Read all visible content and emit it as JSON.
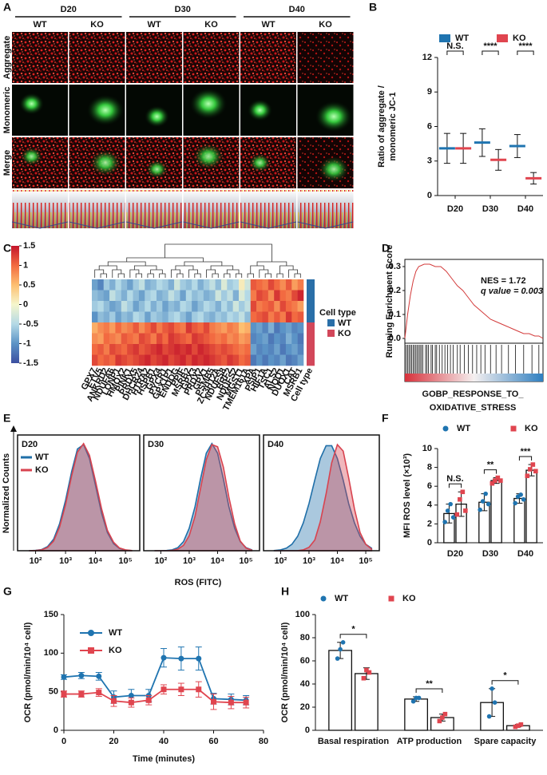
{
  "micrograph": {
    "panel": "A",
    "days": [
      "D20",
      "D30",
      "D40"
    ],
    "groups": [
      "WT",
      "KO"
    ],
    "channels": [
      "Aggregate",
      "Monomeric",
      "Merge"
    ]
  },
  "chart_data": [
    {
      "panel": "B",
      "type": "dot",
      "ylabel": [
        "Ratio of aggregate /",
        "monomeric JC-1"
      ],
      "categories": [
        "D20",
        "D30",
        "D40"
      ],
      "series": [
        {
          "name": "WT",
          "color": "#1f74b0",
          "values": [
            4.1,
            4.6,
            4.3
          ],
          "errors": [
            1.3,
            1.2,
            1.0
          ]
        },
        {
          "name": "KO",
          "color": "#e0454f",
          "values": [
            4.1,
            3.1,
            1.5
          ],
          "errors": [
            1.3,
            0.9,
            0.5
          ]
        }
      ],
      "sig": [
        "N.S.",
        "****",
        "****"
      ],
      "ylim": [
        0,
        12
      ],
      "yticks": [
        0,
        3,
        6,
        9,
        12
      ]
    },
    {
      "panel": "C",
      "type": "heatmap",
      "genes": [
        "GPX7",
        "ETV5",
        "ANKRD2",
        "NDUFA6",
        "LONP1",
        "HMOX2",
        "PINK1",
        "PRDX5",
        "DHCR24",
        "HTRA2",
        "HSPB1",
        "GPX4",
        "PYCR1",
        "GPX1P1",
        "ENDOG",
        "PPIF",
        "MSRB2",
        "GPX3",
        "PRDX2",
        "GPX1",
        "PSMB5",
        "ZC3H12A",
        "NDUFS8",
        "BRF2",
        "NDUFS2",
        "MGST1",
        "TMEM161A",
        "XPA",
        "PSIP1",
        "HIF1A",
        "TSC1",
        "ALS2",
        "NQO1",
        "DUOX1",
        "CAT",
        "MSRB1"
      ],
      "matrix": [
        [
          -0.9,
          -1.1,
          -0.6,
          -0.8,
          -0.5,
          -0.7,
          -0.9,
          -0.6,
          -0.4,
          -0.8,
          -0.7,
          -0.5,
          -0.6,
          -0.8,
          -0.3,
          -0.6,
          -0.7,
          -0.5,
          -0.8,
          -0.6,
          -0.4,
          -0.7,
          -0.2,
          -0.6,
          -0.5,
          0.1,
          -0.3,
          1.1,
          1.0,
          0.9,
          1.2,
          1.0,
          0.8,
          1.1,
          0.7,
          0.9
        ],
        [
          -0.7,
          -0.8,
          -0.9,
          -0.4,
          -0.6,
          -0.8,
          -0.5,
          -0.7,
          -0.9,
          -0.6,
          -0.5,
          -0.8,
          -0.7,
          -0.4,
          -0.6,
          -0.9,
          -0.5,
          -0.7,
          -0.6,
          -0.8,
          -0.7,
          -0.3,
          -0.6,
          -0.4,
          -0.8,
          -0.2,
          -0.5,
          0.9,
          1.2,
          1.1,
          0.8,
          1.3,
          1.0,
          0.9,
          1.2,
          1.4
        ],
        [
          -0.6,
          -0.5,
          -0.7,
          -0.9,
          -0.8,
          -0.4,
          -0.6,
          -0.9,
          -0.7,
          -0.5,
          -0.8,
          -0.6,
          -0.9,
          -0.7,
          -0.8,
          -0.5,
          -0.6,
          -0.9,
          -0.7,
          -0.5,
          -0.6,
          -0.8,
          -0.5,
          -0.7,
          -0.3,
          -0.6,
          -0.4,
          1.2,
          0.9,
          1.0,
          1.1,
          0.8,
          1.2,
          1.0,
          0.9,
          0.7
        ],
        [
          -1.0,
          -0.7,
          -0.8,
          -0.6,
          -0.9,
          -0.7,
          -0.8,
          -0.5,
          -0.6,
          -0.9,
          -0.6,
          -0.7,
          -0.8,
          -0.6,
          -0.5,
          -0.7,
          -0.9,
          -0.6,
          -0.5,
          -0.7,
          -0.8,
          -0.6,
          -0.7,
          -0.5,
          -0.6,
          -0.4,
          -0.7,
          1.0,
          1.1,
          1.2,
          0.9,
          1.1,
          0.9,
          1.3,
          1.0,
          1.1
        ],
        [
          0.6,
          0.8,
          0.9,
          0.7,
          1.0,
          0.8,
          0.9,
          1.1,
          0.8,
          1.0,
          1.2,
          0.9,
          1.1,
          1.2,
          1.0,
          0.9,
          1.3,
          1.1,
          1.0,
          1.2,
          0.9,
          0.8,
          0.7,
          0.9,
          0.8,
          0.5,
          0.6,
          -1.0,
          -0.9,
          -1.1,
          -0.8,
          -1.2,
          -1.0,
          -0.9,
          -1.1,
          -1.0
        ],
        [
          0.8,
          0.7,
          1.0,
          0.9,
          0.8,
          1.1,
          1.0,
          0.9,
          1.2,
          1.1,
          0.9,
          1.2,
          1.0,
          1.3,
          1.2,
          1.1,
          1.0,
          1.3,
          1.2,
          1.1,
          1.0,
          0.9,
          1.0,
          0.8,
          0.9,
          0.7,
          0.8,
          -1.1,
          -1.0,
          -0.9,
          -1.2,
          -1.0,
          -1.1,
          -0.8,
          -1.0,
          -1.2
        ],
        [
          1.0,
          1.1,
          0.9,
          1.2,
          1.1,
          1.0,
          1.2,
          1.3,
          1.1,
          1.2,
          1.3,
          1.4,
          1.2,
          1.3,
          1.4,
          1.3,
          1.4,
          1.2,
          1.4,
          1.3,
          1.2,
          1.1,
          1.2,
          1.1,
          1.0,
          0.9,
          1.0,
          -0.9,
          -1.1,
          -1.0,
          -1.1,
          -0.9,
          -1.2,
          -1.0,
          -0.9,
          -1.1
        ],
        [
          1.2,
          1.0,
          1.1,
          1.0,
          1.3,
          1.2,
          1.1,
          1.2,
          1.3,
          1.4,
          1.2,
          1.3,
          1.4,
          1.2,
          1.3,
          1.4,
          1.2,
          1.4,
          1.3,
          1.4,
          1.3,
          1.2,
          1.1,
          1.3,
          1.2,
          1.0,
          1.1,
          -1.2,
          -1.0,
          -1.2,
          -1.0,
          -1.1,
          -0.9,
          -1.2,
          -1.1,
          -0.9
        ]
      ],
      "row_types": [
        "WT",
        "WT",
        "WT",
        "WT",
        "KO",
        "KO",
        "KO",
        "KO"
      ],
      "types": [
        {
          "name": "WT",
          "color": "#2a6fa8"
        },
        {
          "name": "KO",
          "color": "#d2475a"
        }
      ],
      "legend_title": "Cell type",
      "column_label": "Cell type",
      "zlim": [
        -1.5,
        1.5
      ],
      "colors": [
        "#3b4fa0",
        "#5b93c6",
        "#b4d9e6",
        "#f5f6cc",
        "#fdbf70",
        "#f26a41",
        "#c4152b"
      ],
      "zticks": [
        1.5,
        1,
        0.5,
        0,
        -0.5,
        -1,
        -1.5
      ]
    },
    {
      "panel": "D",
      "type": "gsea",
      "ylabel": "Running Enrichment Score",
      "color": "#d33a3a",
      "x": [
        0,
        2,
        4,
        6,
        8,
        10,
        14,
        18,
        22,
        26,
        30,
        34,
        38,
        42,
        46,
        50,
        54,
        58,
        62,
        66,
        70,
        74,
        78,
        82,
        86,
        90,
        94,
        97,
        100
      ],
      "values": [
        0,
        0.1,
        0.18,
        0.24,
        0.28,
        0.3,
        0.31,
        0.31,
        0.3,
        0.3,
        0.28,
        0.25,
        0.22,
        0.2,
        0.17,
        0.14,
        0.12,
        0.1,
        0.08,
        0.07,
        0.06,
        0.05,
        0.04,
        0.03,
        0.02,
        0.02,
        0.01,
        0.01,
        0.0
      ],
      "hits": [
        1,
        2,
        3,
        4,
        5,
        6,
        7,
        8,
        9,
        10,
        11,
        12,
        13,
        15,
        16,
        17,
        19,
        20,
        22,
        23,
        25,
        27,
        29,
        31,
        33,
        35,
        38,
        40,
        43,
        46,
        49,
        52,
        55,
        58,
        62,
        66,
        70,
        75,
        80,
        86,
        92,
        97
      ],
      "xlim": [
        0,
        100
      ],
      "ylim": [
        -0.02,
        0.33
      ],
      "yticks": [
        {
          "value": 0,
          "label": "0.0"
        },
        0.1,
        0.2,
        0.3
      ],
      "annotations": [
        "NES = 1.72",
        "q value = 0.003"
      ],
      "title": [
        "GOBP_RESPONSE_TO_",
        "OXIDATIVE_STRESS"
      ]
    },
    {
      "panel": "E",
      "type": "density",
      "ylabel": "Normalized Counts",
      "xlabel": "ROS (FITC)",
      "log_x": true,
      "x": [
        60,
        100,
        160,
        250,
        400,
        630,
        1000,
        1600,
        2500,
        4000,
        6300,
        10000,
        16000,
        25000,
        40000,
        63000,
        100000,
        160000
      ],
      "xlim": [
        25,
        300000
      ],
      "ylim": [
        0,
        108
      ],
      "xticks": [
        {
          "value": 100,
          "label": "10²"
        },
        {
          "value": 1000,
          "label": "10³"
        },
        {
          "value": 10000,
          "label": "10⁴"
        },
        {
          "value": 100000,
          "label": "10⁵"
        }
      ],
      "legend": [
        {
          "name": "WT",
          "color": "#1f6fa8"
        },
        {
          "name": "KO",
          "color": "#d8434f"
        }
      ],
      "panels": [
        {
          "title": "D20",
          "series": [
            {
              "values": [
                0,
                0.3,
                1.1,
                3.8,
                10.8,
                25,
                47,
                74,
                95,
                99,
                86,
                61,
                35,
                17,
                6.6,
                2.1,
                0.6,
                0.1
              ]
            },
            {
              "values": [
                0,
                0.2,
                0.8,
                3,
                9,
                22,
                43,
                70,
                92,
                100,
                89,
                65,
                39,
                19,
                8,
                2.6,
                0.8,
                0.2
              ]
            }
          ]
        },
        {
          "title": "D30",
          "series": [
            {
              "values": [
                0,
                0,
                0.2,
                0.8,
                2.9,
                8.5,
                21,
                41,
                67,
                91,
                100,
                91,
                67,
                41,
                21,
                8.5,
                2.9,
                0.8
              ]
            },
            {
              "values": [
                0,
                0,
                0,
                0.3,
                1.5,
                5,
                14,
                32,
                58,
                85,
                99,
                97,
                78,
                50,
                25,
                9,
                2.5,
                0.5
              ]
            }
          ]
        },
        {
          "title": "D40",
          "series": [
            {
              "values": [
                0.2,
                0.8,
                2.4,
                6,
                13.5,
                26,
                44,
                66,
                86,
                98,
                98,
                86,
                66,
                44,
                26,
                13.5,
                6,
                2.4
              ]
            },
            {
              "values": [
                0,
                0,
                0,
                0,
                0.1,
                0.8,
                3.2,
                10,
                27,
                53,
                82,
                99,
                93,
                68,
                39,
                17,
                6,
                1.6
              ]
            }
          ]
        }
      ]
    },
    {
      "panel": "F",
      "type": "bar",
      "ylabel": "MFI ROS level (×10³)",
      "categories": [
        "D20",
        "D30",
        "D40"
      ],
      "series": [
        {
          "name": "WT",
          "color": "#1f74b0",
          "marker": "circle",
          "values": [
            3.1,
            4.3,
            4.7
          ],
          "errors": [
            1.0,
            0.9,
            0.5
          ],
          "points": [
            [
              2.2,
              3.4,
              4.1,
              2.7
            ],
            [
              3.5,
              4.4,
              5.2,
              4.1
            ],
            [
              4.2,
              4.9,
              5.1,
              4.6
            ]
          ]
        },
        {
          "name": "KO",
          "color": "#e0454f",
          "marker": "square",
          "values": [
            4.1,
            6.6,
            7.7
          ],
          "errors": [
            1.3,
            0.3,
            0.6
          ],
          "points": [
            [
              3.0,
              4.6,
              5.4,
              3.4
            ],
            [
              6.3,
              6.6,
              6.9,
              6.6
            ],
            [
              7.1,
              7.8,
              8.3,
              7.6
            ]
          ]
        }
      ],
      "sig": [
        "N.S.",
        "**",
        "***"
      ],
      "ylim": [
        0,
        10
      ],
      "yticks": [
        0,
        2,
        4,
        6,
        8,
        10
      ]
    },
    {
      "panel": "G",
      "type": "line",
      "ylabel": "OCR (pmol/min/10⁴ cell)",
      "xlabel": "Time (minutes)",
      "x": [
        0,
        7,
        14,
        20,
        27,
        34,
        40,
        47,
        54,
        60,
        67,
        73
      ],
      "series": [
        {
          "name": "WT",
          "color": "#1f74b0",
          "marker": "circle",
          "values": [
            69,
            71,
            70,
            43,
            45,
            45,
            94,
            93,
            93,
            41,
            40,
            39
          ],
          "errors": [
            3,
            4,
            5,
            8,
            8,
            8,
            12,
            15,
            15,
            7,
            7,
            6
          ]
        },
        {
          "name": "KO",
          "color": "#e0454f",
          "marker": "square",
          "values": [
            47,
            47,
            49,
            38,
            36,
            39,
            53,
            53,
            53,
            37,
            36,
            36
          ],
          "errors": [
            4,
            4,
            5,
            7,
            6,
            6,
            6,
            8,
            10,
            10,
            8,
            7
          ]
        }
      ],
      "xlim": [
        0,
        80
      ],
      "xticks": [
        0,
        20,
        40,
        60,
        80
      ],
      "ylim": [
        0,
        150
      ],
      "yticks": [
        0,
        50,
        100,
        150
      ]
    },
    {
      "panel": "H",
      "type": "bar",
      "ylabel": "OCR (pmol/min/10⁴ cell)",
      "categories": [
        "Basal respiration",
        "ATP production",
        "Spare capacity"
      ],
      "series": [
        {
          "name": "WT",
          "color": "#1f74b0",
          "marker": "circle",
          "values": [
            69,
            27,
            24
          ],
          "errors": [
            7,
            2,
            12
          ],
          "points": [
            [
              62,
              70,
              76
            ],
            [
              25,
              28,
              28
            ],
            [
              12,
              36,
              24
            ]
          ]
        },
        {
          "name": "KO",
          "color": "#e0454f",
          "marker": "square",
          "values": [
            49,
            11,
            4
          ],
          "errors": [
            5,
            3,
            1
          ],
          "points": [
            [
              45,
              52,
              50
            ],
            [
              8,
              11,
              14
            ],
            [
              3,
              4,
              5
            ]
          ]
        }
      ],
      "sig": [
        "*",
        "**",
        "*"
      ],
      "ylim": [
        0,
        100
      ],
      "yticks": [
        0,
        20,
        40,
        60,
        80,
        100
      ]
    }
  ]
}
